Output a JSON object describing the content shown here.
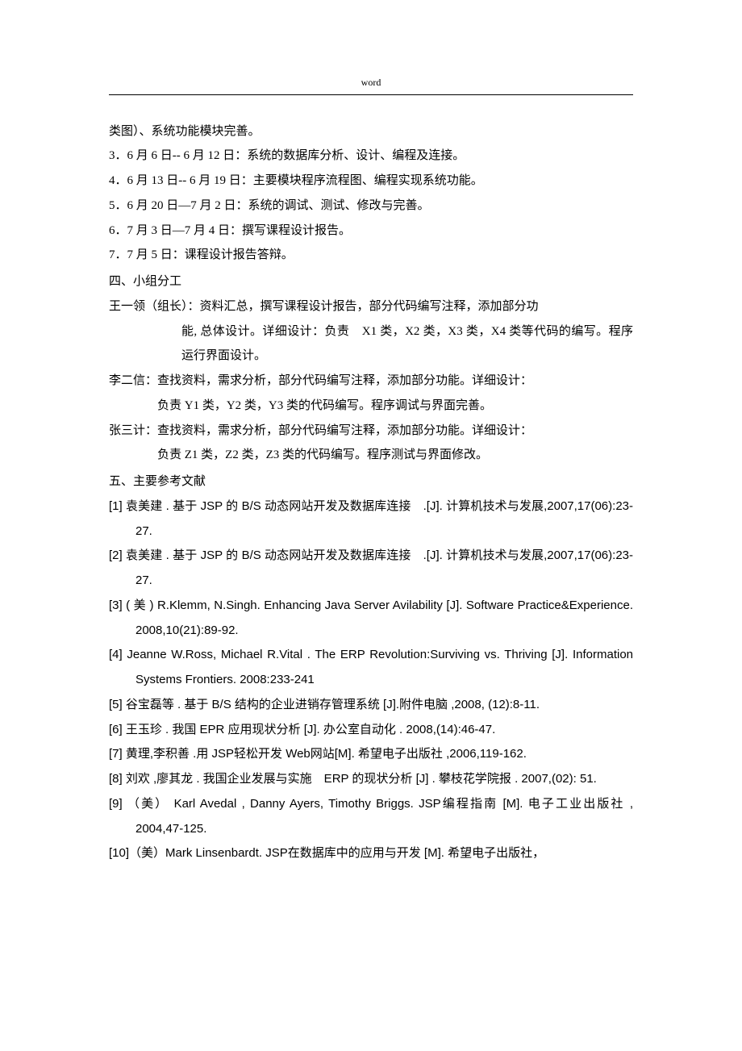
{
  "header": {
    "label": "word"
  },
  "lines": {
    "l01": "类图）、系统功能模块完善。",
    "l02": "3．6 月 6 日-- 6 月 12 日：系统的数据库分析、设计、编程及连接。",
    "l03": "4．6 月 13 日-- 6 月 19 日：主要模块程序流程图、编程实现系统功能。",
    "l04": "5．6 月 20 日—7 月 2 日：系统的调试、测试、修改与完善。",
    "l05": "6．7 月 3 日—7 月 4 日：撰写课程设计报告。",
    "l06": "7．7 月 5 日：课程设计报告答辩。",
    "l07": "四、小组分工",
    "l08": "王一领（组长）：资料汇总，撰写课程设计报告，部分代码编写注释，添加部分功",
    "l08b": "能, 总体设计。详细设计：负责　X1 类，X2 类，X3 类，X4 类等代码的编写。程序运行界面设计。",
    "l09": "李二信：查找资料，需求分析，部分代码编写注释，添加部分功能。详细设计：",
    "l09b": "负责 Y1 类，Y2 类，Y3 类的代码编写。程序调试与界面完善。",
    "l10": "张三计：查找资料，需求分析，部分代码编写注释，添加部分功能。详细设计：",
    "l10b": "负责 Z1 类，Z2 类，Z3 类的代码编写。程序测试与界面修改。",
    "l11": "五、主要参考文献",
    "r01": "[1]  袁美建 . 基于  JSP 的  B/S 动态网站开发及数据库连接　.[J]. 计算机技术与发展,2007,17(06):23-27.",
    "r02": "[2]  袁美建 . 基于  JSP 的  B/S 动态网站开发及数据库连接　.[J]. 计算机技术与发展,2007,17(06):23-27.",
    "r03": "[3]  ( 美 )  R.Klemm,   N.Singh.  Enhancing  Java  Server  Avilability    [J].   Software Practice&Experience. 2008,10(21):89-92.",
    "r04": "[4]   Jeanne W.Ross, Michael R.Vital . The ERP Revolution:Surviving vs. Thriving [J]. Information Systems Frontiers. 2008:233-241",
    "r05": "[5]  谷宝磊等 . 基于 B/S 结构的企业进销存管理系统  [J].附件电脑 ,2008, (12):8-11.",
    "r06": "[6]  王玉珍 . 我国 EPR 应用现状分析 [J]. 办公室自动化 . 2008,(14):46-47.",
    "r07": "[7]  黄理,李积善 .用 JSP轻松开发 Web网站[M]. 希望电子出版社 ,2006,119-162.",
    "r08": "[8]  刘欢 ,廖其龙 . 我国企业发展与实施　ERP 的现状分析  [J] . 攀枝花学院报 . 2007,(02): 51.",
    "r09": "[9] （美） Karl Avedal , Danny Ayers, Timothy Briggs.  JSP编程指南 [M].  电子工业出版社 , 2004,47-125.",
    "r10": "[10]（美）Mark Linsenbardt.   JSP在数据库中的应用与开发  [M].  希望电子出版社，"
  }
}
